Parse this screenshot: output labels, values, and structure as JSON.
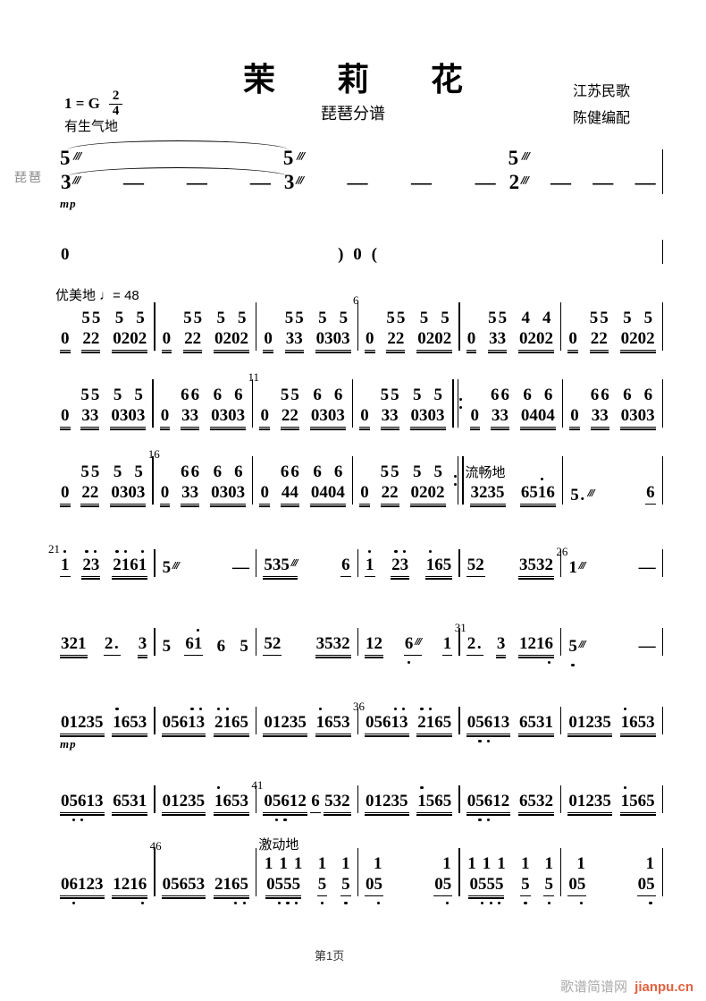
{
  "header": {
    "title": "茉 莉 花",
    "subtitle": "琵琶分谱",
    "key": "1 = G",
    "time_upper": "2",
    "time_lower": "4",
    "credit1": "江苏民歌",
    "credit2": "陈健编配"
  },
  "labels": {
    "instrument": "琵琶",
    "page_number": "第1页",
    "footer_site": "歌谱简谱网",
    "footer_url": "jianpu.cn"
  },
  "colors": {
    "footer_gray": "#aaaaaa",
    "footer_orange": "#e2613f",
    "instrument_gray": "#8a8a8a"
  },
  "systems": [
    {
      "kind": "intro",
      "measures": [
        {
          "label": "有生气地",
          "bar": "none",
          "notes": [
            {
              "up": "5~",
              "t": "3~",
              "below": "mp"
            },
            {
              "t": "—"
            },
            {
              "t": "—"
            },
            {
              "t": "—"
            }
          ]
        },
        {
          "bar": "none",
          "notes": [
            {
              "up": "5~",
              "t": "3~"
            },
            {
              "t": "—"
            },
            {
              "t": "—"
            },
            {
              "t": "—"
            }
          ]
        },
        {
          "notes": [
            {
              "up": "5~",
              "t": "2~"
            },
            {
              "t": "—"
            },
            {
              "t": "—"
            },
            {
              "t": "—"
            }
          ]
        }
      ]
    },
    {
      "kind": "rest",
      "measures": [
        {
          "notes": [
            {
              "t": "0"
            },
            {
              "t": ") 0 ("
            },
            {
              "t": " "
            }
          ]
        }
      ]
    },
    {
      "kind": "duet",
      "measures": [
        {
          "label": "优美地 ♩= 48",
          "notes": [
            {
              "t": "0",
              "u": 2
            },
            {
              "up": "55",
              "t": "22",
              "u": 2
            },
            {
              "up": "5 5",
              "t": "0202",
              "u": 2
            }
          ]
        },
        {
          "notes": [
            {
              "t": "0",
              "u": 2
            },
            {
              "up": "55",
              "t": "22",
              "u": 2
            },
            {
              "up": "5 5",
              "t": "0202",
              "u": 2
            }
          ]
        },
        {
          "notes": [
            {
              "t": "0",
              "u": 2
            },
            {
              "up": "55",
              "t": "33",
              "u": 2
            },
            {
              "up": "5 5",
              "t": "0303",
              "u": 2
            }
          ]
        },
        {
          "num": "6",
          "notes": [
            {
              "t": "0",
              "u": 2
            },
            {
              "up": "55",
              "t": "22",
              "u": 2
            },
            {
              "up": "5 5",
              "t": "0202",
              "u": 2
            }
          ]
        },
        {
          "notes": [
            {
              "t": "0",
              "u": 2
            },
            {
              "up": "55",
              "t": "33",
              "u": 2
            },
            {
              "up": "4 4",
              "t": "0202",
              "u": 2
            }
          ]
        },
        {
          "notes": [
            {
              "t": "0",
              "u": 2
            },
            {
              "up": "55",
              "t": "22",
              "u": 2
            },
            {
              "up": "5 5",
              "t": "0202",
              "u": 2
            }
          ]
        }
      ]
    },
    {
      "kind": "duet",
      "measures": [
        {
          "notes": [
            {
              "t": "0",
              "u": 2
            },
            {
              "up": "55",
              "t": "33",
              "u": 2
            },
            {
              "up": "5 5",
              "t": "0303",
              "u": 2
            }
          ]
        },
        {
          "notes": [
            {
              "t": "0",
              "u": 2
            },
            {
              "up": "66",
              "t": "33",
              "u": 2
            },
            {
              "up": "6 6",
              "t": "0303",
              "u": 2
            }
          ]
        },
        {
          "num": "11",
          "notes": [
            {
              "t": "0",
              "u": 2
            },
            {
              "up": "55",
              "t": "22",
              "u": 2
            },
            {
              "up": "6 6",
              "t": "0303",
              "u": 2
            }
          ]
        },
        {
          "bar": "none",
          "notes": [
            {
              "t": "0",
              "u": 2
            },
            {
              "up": "55",
              "t": "33",
              "u": 2
            },
            {
              "up": "5 5",
              "t": "0303",
              "u": 2
            }
          ]
        },
        {
          "bar_before": "rstart",
          "notes": [
            {
              "t": "0",
              "u": 2
            },
            {
              "up": "66",
              "t": "33",
              "u": 2
            },
            {
              "up": "6 6",
              "t": "0404",
              "u": 2
            }
          ]
        },
        {
          "notes": [
            {
              "t": "0",
              "u": 2
            },
            {
              "up": "66",
              "t": "33",
              "u": 2
            },
            {
              "up": "6 6",
              "t": "0303",
              "u": 2
            }
          ]
        }
      ]
    },
    {
      "kind": "duet",
      "measures": [
        {
          "notes": [
            {
              "t": "0",
              "u": 2
            },
            {
              "up": "55",
              "t": "22",
              "u": 2
            },
            {
              "up": "5 5",
              "t": "0303",
              "u": 2
            }
          ]
        },
        {
          "num": "16",
          "notes": [
            {
              "t": "0",
              "u": 2
            },
            {
              "up": "66",
              "t": "33",
              "u": 2
            },
            {
              "up": "6 6",
              "t": "0303",
              "u": 2
            }
          ]
        },
        {
          "notes": [
            {
              "t": "0",
              "u": 2
            },
            {
              "up": "66",
              "t": "44",
              "u": 2
            },
            {
              "up": "6 6",
              "t": "0404",
              "u": 2
            }
          ]
        },
        {
          "bar": "rend",
          "notes": [
            {
              "t": "0",
              "u": 2
            },
            {
              "up": "55",
              "t": "22",
              "u": 2
            },
            {
              "up": "5 5",
              "t": "0202",
              "u": 2
            }
          ]
        },
        {
          "label": "流畅地",
          "notes": [
            {
              "t": "3235",
              "u": 2
            },
            {
              "t": "651'6",
              "u": 2
            }
          ]
        },
        {
          "notes": [
            {
              "t": "5.~"
            },
            {
              "t": "6",
              "u": 1
            }
          ]
        }
      ]
    },
    {
      "kind": "melody",
      "measures": [
        {
          "num": "21",
          "notes": [
            {
              "t": "1'",
              "u": 1
            },
            {
              "t": "2'3'",
              "u": 2
            },
            {
              "t": "2'1'61'",
              "u": 2
            }
          ]
        },
        {
          "notes": [
            {
              "t": "5~"
            },
            {
              "t": "—"
            }
          ]
        },
        {
          "notes": [
            {
              "t": "535~",
              "u": 2
            },
            {
              "t": "6",
              "u": 1
            }
          ]
        },
        {
          "notes": [
            {
              "t": "1'",
              "u": 1
            },
            {
              "t": "2'3'",
              "u": 2
            },
            {
              "t": "1'65",
              "u": 2
            }
          ]
        },
        {
          "notes": [
            {
              "t": "52",
              "u": 1
            },
            {
              "t": "3532",
              "u": 2
            }
          ]
        },
        {
          "num": "26",
          "notes": [
            {
              "t": "1~"
            },
            {
              "t": "—"
            }
          ]
        }
      ]
    },
    {
      "kind": "melody",
      "measures": [
        {
          "notes": [
            {
              "t": "321",
              "u": 2
            },
            {
              "t": "2.",
              "u": 1
            },
            {
              "t": "3",
              "u": 2
            }
          ]
        },
        {
          "notes": [
            {
              "t": "5"
            },
            {
              "t": "61'",
              "u": 1
            },
            {
              "t": "6"
            },
            {
              "t": "5"
            }
          ]
        },
        {
          "notes": [
            {
              "t": "52",
              "u": 1
            },
            {
              "t": "3532",
              "u": 2
            }
          ]
        },
        {
          "notes": [
            {
              "t": "12",
              "u": 2
            },
            {
              "t": "6!~",
              "u": 1
            },
            {
              "t": "1",
              "u": 1
            }
          ]
        },
        {
          "num": "31",
          "notes": [
            {
              "t": "2.",
              "u": 1
            },
            {
              "t": "3",
              "u": 2
            },
            {
              "t": "1216!",
              "u": 2
            }
          ]
        },
        {
          "notes": [
            {
              "t": "5!~"
            },
            {
              "t": "—"
            }
          ]
        }
      ]
    },
    {
      "kind": "melody",
      "measures": [
        {
          "notes": [
            {
              "t": "01235",
              "u": 2,
              "below": "mp"
            },
            {
              "t": "1'653",
              "u": 2
            }
          ]
        },
        {
          "notes": [
            {
              "t": "0561'3'",
              "u": 2
            },
            {
              "t": "2'1'65",
              "u": 2
            }
          ]
        },
        {
          "notes": [
            {
              "t": "01235",
              "u": 2
            },
            {
              "t": "1'653",
              "u": 2
            }
          ]
        },
        {
          "num": "36",
          "notes": [
            {
              "t": "0561'3'",
              "u": 2
            },
            {
              "t": "2'1'65",
              "u": 2
            }
          ]
        },
        {
          "notes": [
            {
              "t": "05!6!13",
              "u": 2
            },
            {
              "t": "6531",
              "u": 2
            }
          ]
        },
        {
          "notes": [
            {
              "t": "01235",
              "u": 2
            },
            {
              "t": "1'653",
              "u": 2
            }
          ]
        }
      ]
    },
    {
      "kind": "melody",
      "measures": [
        {
          "notes": [
            {
              "t": "05!6!13",
              "u": 2
            },
            {
              "t": "6531",
              "u": 2
            }
          ]
        },
        {
          "notes": [
            {
              "t": "01235",
              "u": 2
            },
            {
              "t": "1'653",
              "u": 2
            }
          ]
        },
        {
          "num": "41",
          "notes": [
            {
              "t": "05!6!12",
              "u": 2
            },
            {
              "t": "6",
              "u": 1
            },
            {
              "t": "532",
              "u": 2
            }
          ]
        },
        {
          "notes": [
            {
              "t": "01235",
              "u": 2
            },
            {
              "t": "1'565",
              "u": 2
            }
          ]
        },
        {
          "notes": [
            {
              "t": "05!6!12",
              "u": 2
            },
            {
              "t": "6532",
              "u": 2
            }
          ]
        },
        {
          "notes": [
            {
              "t": "01235",
              "u": 2
            },
            {
              "t": "1'565",
              "u": 2
            }
          ]
        }
      ]
    },
    {
      "kind": "duet",
      "measures": [
        {
          "notes": [
            {
              "t": "06!123",
              "u": 2
            },
            {
              "t": "1216!",
              "u": 2
            }
          ]
        },
        {
          "num": "46",
          "notes": [
            {
              "t": "05653",
              "u": 2
            },
            {
              "t": "216!5!",
              "u": 2
            }
          ]
        },
        {
          "label": "激动地",
          "notes": [
            {
              "upr": "111",
              "t": "05!5!5!",
              "u": 2
            },
            {
              "up": "1",
              "t": "5!",
              "u": 1
            },
            {
              "up": "1",
              "t": "5!",
              "u": 1
            }
          ]
        },
        {
          "notes": [
            {
              "upr": "1",
              "t": "05!",
              "u": 1
            },
            {
              "upr": "1",
              "t": "05!",
              "u": 1
            }
          ]
        },
        {
          "notes": [
            {
              "upr": "111",
              "t": "05!5!5!",
              "u": 2
            },
            {
              "up": "1",
              "t": "5!",
              "u": 1
            },
            {
              "up": "1",
              "t": "5!",
              "u": 1
            }
          ]
        },
        {
          "notes": [
            {
              "upr": "1",
              "t": "05!",
              "u": 1
            },
            {
              "upr": "1",
              "t": "05!",
              "u": 1
            }
          ]
        }
      ]
    }
  ]
}
